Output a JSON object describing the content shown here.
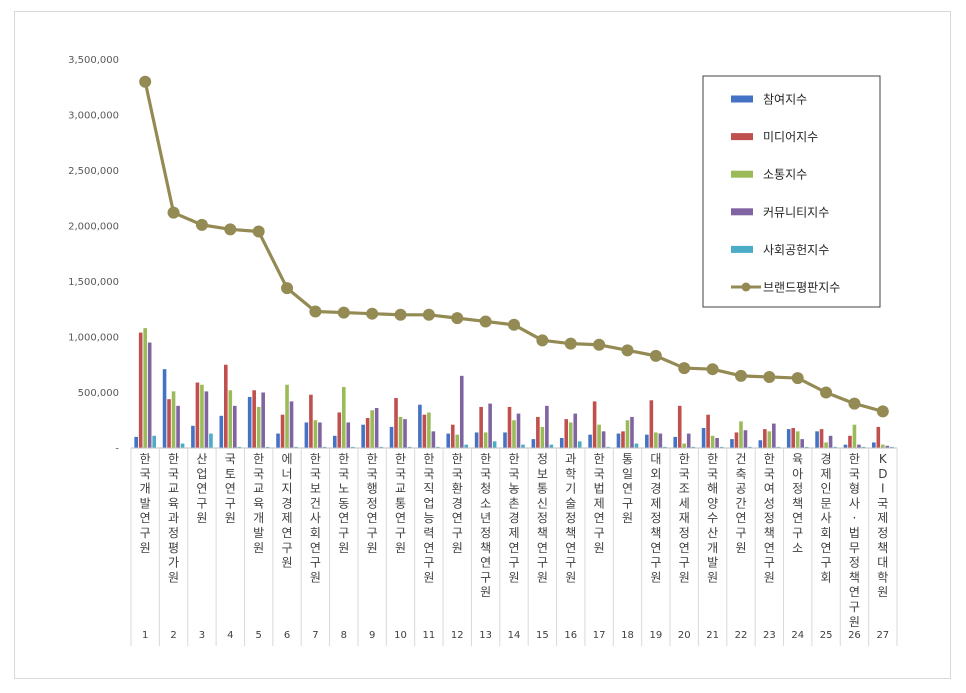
{
  "chart_data": {
    "type": "bar",
    "title": "",
    "xlabel": "",
    "ylabel": "",
    "ylim": [
      0,
      3500000
    ],
    "yticks": [
      0,
      500000,
      1000000,
      1500000,
      2000000,
      2500000,
      3000000,
      3500000
    ],
    "ytick_labels": [
      "-",
      "500,000",
      "1,000,000",
      "1,500,000",
      "2,000,000",
      "2,500,000",
      "3,000,000",
      "3,500,000"
    ],
    "grid": false,
    "legend_position": "top-right",
    "categories": [
      "한국개발연구원",
      "한국교육과정평가원",
      "산업연구원",
      "국토연구원",
      "한국교육개발원",
      "에너지경제연구원",
      "한국보건사회연구원",
      "한국노동연구원",
      "한국행정연구원",
      "한국교통연구원",
      "한국직업능력연구원",
      "한국환경연구원",
      "한국청소년정책연구원",
      "한국농촌경제연구원",
      "정보통신정책연구원",
      "과학기술정책연구원",
      "한국법제연구원",
      "통일연구원",
      "대외경제정책연구원",
      "한국조세재정연구원",
      "한국해양수산개발원",
      "건축공간연구원",
      "한국여성정책연구원",
      "육아정책연구소",
      "경제인문사회연구회",
      "한국형사·법무정책연구원",
      "KDI국제정책대학원"
    ],
    "ranks": [
      "1",
      "2",
      "3",
      "4",
      "5",
      "6",
      "7",
      "8",
      "9",
      "10",
      "11",
      "12",
      "13",
      "14",
      "15",
      "16",
      "17",
      "18",
      "19",
      "20",
      "21",
      "22",
      "23",
      "24",
      "25",
      "26",
      "27"
    ],
    "series": [
      {
        "name": "참여지수",
        "color": "#4472c4",
        "values": [
          100000,
          710000,
          200000,
          290000,
          460000,
          130000,
          230000,
          110000,
          210000,
          190000,
          390000,
          130000,
          140000,
          140000,
          80000,
          90000,
          120000,
          130000,
          120000,
          100000,
          180000,
          80000,
          70000,
          170000,
          150000,
          30000,
          50000
        ]
      },
      {
        "name": "미디어지수",
        "color": "#c0504d",
        "values": [
          1040000,
          440000,
          590000,
          750000,
          520000,
          300000,
          480000,
          320000,
          270000,
          450000,
          300000,
          210000,
          370000,
          370000,
          280000,
          260000,
          420000,
          150000,
          430000,
          380000,
          300000,
          140000,
          170000,
          180000,
          170000,
          110000,
          190000
        ]
      },
      {
        "name": "소통지수",
        "color": "#9bbb59",
        "values": [
          1080000,
          510000,
          570000,
          520000,
          370000,
          570000,
          250000,
          550000,
          340000,
          280000,
          320000,
          120000,
          140000,
          250000,
          190000,
          230000,
          210000,
          250000,
          140000,
          40000,
          110000,
          240000,
          150000,
          150000,
          50000,
          210000,
          30000
        ]
      },
      {
        "name": "커뮤니티지수",
        "color": "#8064a2",
        "values": [
          950000,
          380000,
          510000,
          380000,
          500000,
          420000,
          230000,
          230000,
          360000,
          260000,
          150000,
          650000,
          400000,
          310000,
          380000,
          310000,
          150000,
          280000,
          130000,
          130000,
          90000,
          160000,
          220000,
          80000,
          110000,
          30000,
          20000
        ]
      },
      {
        "name": "사회공헌지수",
        "color": "#4bacc6",
        "values": [
          110000,
          40000,
          130000,
          10000,
          10000,
          10000,
          10000,
          10000,
          10000,
          10000,
          10000,
          30000,
          60000,
          30000,
          30000,
          60000,
          10000,
          40000,
          10000,
          10000,
          10000,
          10000,
          10000,
          10000,
          10000,
          10000,
          10000
        ]
      },
      {
        "name": "브랜드평판지수",
        "type": "line",
        "color": "#948a54",
        "values": [
          3300000,
          2120000,
          2010000,
          1970000,
          1950000,
          1440000,
          1230000,
          1220000,
          1210000,
          1200000,
          1200000,
          1170000,
          1140000,
          1110000,
          970000,
          940000,
          930000,
          880000,
          830000,
          720000,
          710000,
          650000,
          640000,
          630000,
          500000,
          400000,
          330000
        ]
      }
    ]
  }
}
